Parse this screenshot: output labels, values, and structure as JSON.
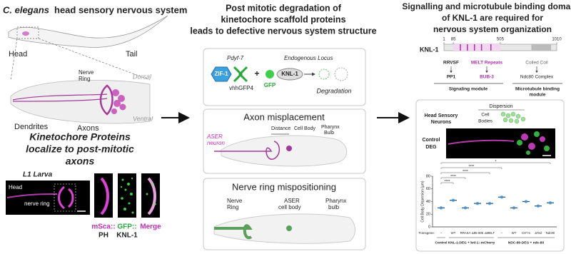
{
  "left": {
    "title_species": "C. elegans",
    "title_rest": "head sensory nervous system",
    "worm_labels": [
      "Head",
      "Tail"
    ],
    "head_labels": {
      "nerve_ring": [
        "Nerve",
        "Ring"
      ],
      "dorsal": "Dorsal",
      "ventral": "Ventral",
      "dendrites": "Dendrites",
      "axons": "Axons"
    },
    "heading": [
      "Kinetochore Proteins",
      "localize to post-mitotic",
      "axons"
    ],
    "micrograph": {
      "stage": "L1 Larva",
      "head": "Head",
      "nerve_ring": "nerve ring"
    },
    "channels": [
      {
        "marker": "mSca::",
        "protein": "PH"
      },
      {
        "marker": "GFP::",
        "protein": "KNL-1"
      },
      {
        "marker": "Merge"
      }
    ]
  },
  "middle": {
    "title": [
      "Post mitotic degradation of",
      "kinetochore scaffold proteins",
      "leads to defective nervous system structure"
    ],
    "strategy": {
      "promoter": "Pdyf-7",
      "locus": "Endogenous Locus",
      "zif": "ZIF-1",
      "nanobody": "vhhGFP4",
      "plus": "+",
      "gfp": "GFP",
      "knl": "KNL-1",
      "result": "Degradation"
    },
    "axon": {
      "title": "Axon misplacement",
      "neuron": [
        "ASER",
        "neuron"
      ],
      "distance": "Distance",
      "cell_body": "Cell Body",
      "pharynx": [
        "Pharynx",
        "Bulb"
      ]
    },
    "ring": {
      "title": "Nerve ring mispositioning",
      "nerve_ring": [
        "Nerve",
        "Ring"
      ],
      "aser": [
        "ASER",
        "cell body"
      ],
      "pharynx": [
        "Pharynx",
        "bulb"
      ]
    }
  },
  "right": {
    "title": [
      "Signalling and microtubule binding domains",
      "of KNL-1 are required for",
      "nervous system organization"
    ],
    "domain": {
      "name": "KNL-1",
      "length": [
        1,
        1010
      ],
      "positions": [
        1,
        85,
        505,
        1010
      ],
      "motifs": [
        {
          "name": "RRVSF",
          "partner": "PP1"
        },
        {
          "name": "MELT Repeats",
          "partner": "BUB-3"
        },
        {
          "name": "Coiled Coil",
          "partner": "Ndc80 Complex"
        }
      ],
      "modules": [
        [
          "Signaling module"
        ],
        [
          "Microtubule binding",
          "module"
        ]
      ]
    },
    "assay": {
      "dispersion": "Dispersion",
      "neurons": [
        "Head Sensory",
        "Neurons"
      ],
      "cell_bodies": [
        "Cell",
        "Bodies"
      ],
      "condition": [
        "Control",
        "DEG"
      ]
    },
    "plot": {
      "y_label": "Cell Body Dispersion (µm)",
      "ylim": [
        0,
        80
      ],
      "yticks": [
        0,
        20,
        40,
        60,
        80
      ],
      "transgene_label": "Transgene:",
      "columns": [
        "–",
        "WT",
        "RRASA",
        "Δ85-505",
        "ΔMELT",
        "–",
        "WT",
        "CH^m",
        "ΔTail",
        "Ndc80"
      ],
      "means": [
        30,
        42,
        30,
        37,
        37,
        47,
        30,
        40,
        33,
        38
      ],
      "color": "#3a8fd0",
      "significance": [
        "****",
        "****",
        "****",
        "****",
        "*"
      ],
      "groups": [
        "Control",
        "KNL-1-DEG + knl-1::mCherry",
        "NDC-80-DEG + ndc-80"
      ]
    }
  }
}
